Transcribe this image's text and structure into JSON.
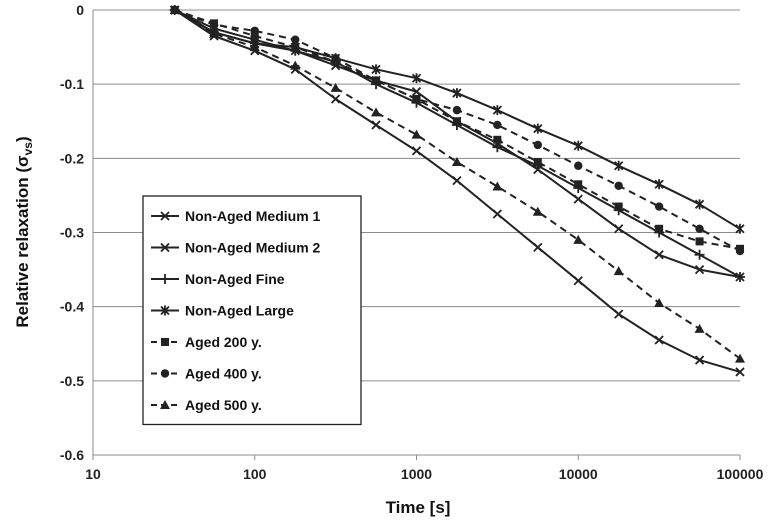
{
  "chart_data": {
    "type": "line",
    "xscale": "log",
    "xlabel": "Time [s]",
    "ylabel_main": "Relative relaxation (σ",
    "ylabel_sub": "vs",
    "ylabel_close": ")",
    "xlim": [
      10,
      100000
    ],
    "ylim": [
      -0.6,
      0
    ],
    "grid": "horizontal",
    "legend_position": "lower-left",
    "x_ticks": [
      {
        "value": 10,
        "label": "10"
      },
      {
        "value": 100,
        "label": "100"
      },
      {
        "value": 1000,
        "label": "1000"
      },
      {
        "value": 10000,
        "label": "10000"
      },
      {
        "value": 100000,
        "label": "100000"
      }
    ],
    "y_ticks": [
      {
        "value": 0,
        "label": "0"
      },
      {
        "value": -0.1,
        "label": "-0.1"
      },
      {
        "value": -0.2,
        "label": "-0.2"
      },
      {
        "value": -0.3,
        "label": "-0.3"
      },
      {
        "value": -0.4,
        "label": "-0.4"
      },
      {
        "value": -0.5,
        "label": "-0.5"
      },
      {
        "value": -0.6,
        "label": "-0.6"
      }
    ],
    "series": [
      {
        "name": "Non-Aged Medium 1",
        "dash": "solid",
        "marker": "x",
        "x": [
          32,
          56,
          100,
          178,
          316,
          562,
          1000,
          1778,
          3162,
          5623,
          10000,
          17783,
          31623,
          56234,
          100000
        ],
        "y": [
          0,
          -0.035,
          -0.055,
          -0.08,
          -0.12,
          -0.155,
          -0.19,
          -0.23,
          -0.275,
          -0.32,
          -0.365,
          -0.41,
          -0.445,
          -0.472,
          -0.488
        ]
      },
      {
        "name": "Non-Aged Medium 2",
        "dash": "solid",
        "marker": "x",
        "x": [
          32,
          56,
          100,
          178,
          316,
          562,
          1000,
          1778,
          3162,
          5623,
          10000,
          17783,
          31623,
          56234,
          100000
        ],
        "y": [
          0,
          -0.025,
          -0.04,
          -0.055,
          -0.075,
          -0.095,
          -0.11,
          -0.15,
          -0.18,
          -0.215,
          -0.255,
          -0.295,
          -0.33,
          -0.35,
          -0.36
        ]
      },
      {
        "name": "Non-Aged Fine",
        "dash": "solid",
        "marker": "plus",
        "x": [
          32,
          56,
          100,
          178,
          316,
          562,
          1000,
          1778,
          3162,
          5623,
          10000,
          17783,
          31623,
          56234,
          100000
        ],
        "y": [
          0,
          -0.03,
          -0.045,
          -0.055,
          -0.07,
          -0.1,
          -0.125,
          -0.155,
          -0.185,
          -0.21,
          -0.24,
          -0.27,
          -0.3,
          -0.33,
          -0.36
        ]
      },
      {
        "name": "Non-Aged Large",
        "dash": "solid",
        "marker": "star",
        "x": [
          32,
          56,
          100,
          178,
          316,
          562,
          1000,
          1778,
          3162,
          5623,
          10000,
          17783,
          31623,
          56234,
          100000
        ],
        "y": [
          0,
          -0.03,
          -0.045,
          -0.05,
          -0.065,
          -0.08,
          -0.092,
          -0.112,
          -0.135,
          -0.16,
          -0.183,
          -0.21,
          -0.235,
          -0.262,
          -0.295
        ]
      },
      {
        "name": "Aged 200 y.",
        "dash": "dashed",
        "marker": "square",
        "x": [
          32,
          56,
          100,
          178,
          316,
          562,
          1000,
          1778,
          3162,
          5623,
          10000,
          17783,
          31623,
          56234,
          100000
        ],
        "y": [
          0,
          -0.018,
          -0.035,
          -0.05,
          -0.07,
          -0.095,
          -0.12,
          -0.15,
          -0.175,
          -0.205,
          -0.235,
          -0.265,
          -0.295,
          -0.312,
          -0.322
        ]
      },
      {
        "name": "Aged 400 y.",
        "dash": "dashed",
        "marker": "circle",
        "x": [
          32,
          56,
          100,
          178,
          316,
          562,
          1000,
          1778,
          3162,
          5623,
          10000,
          17783,
          31623,
          56234,
          100000
        ],
        "y": [
          0,
          -0.02,
          -0.028,
          -0.04,
          -0.065,
          -0.095,
          -0.12,
          -0.135,
          -0.155,
          -0.182,
          -0.21,
          -0.237,
          -0.265,
          -0.295,
          -0.325
        ]
      },
      {
        "name": "Aged 500 y.",
        "dash": "dashed",
        "marker": "triangle",
        "x": [
          32,
          56,
          100,
          178,
          316,
          562,
          1000,
          1778,
          3162,
          5623,
          10000,
          17783,
          31623,
          56234,
          100000
        ],
        "y": [
          0,
          -0.032,
          -0.05,
          -0.075,
          -0.105,
          -0.138,
          -0.168,
          -0.205,
          -0.238,
          -0.272,
          -0.31,
          -0.352,
          -0.395,
          -0.43,
          -0.47
        ]
      }
    ]
  }
}
